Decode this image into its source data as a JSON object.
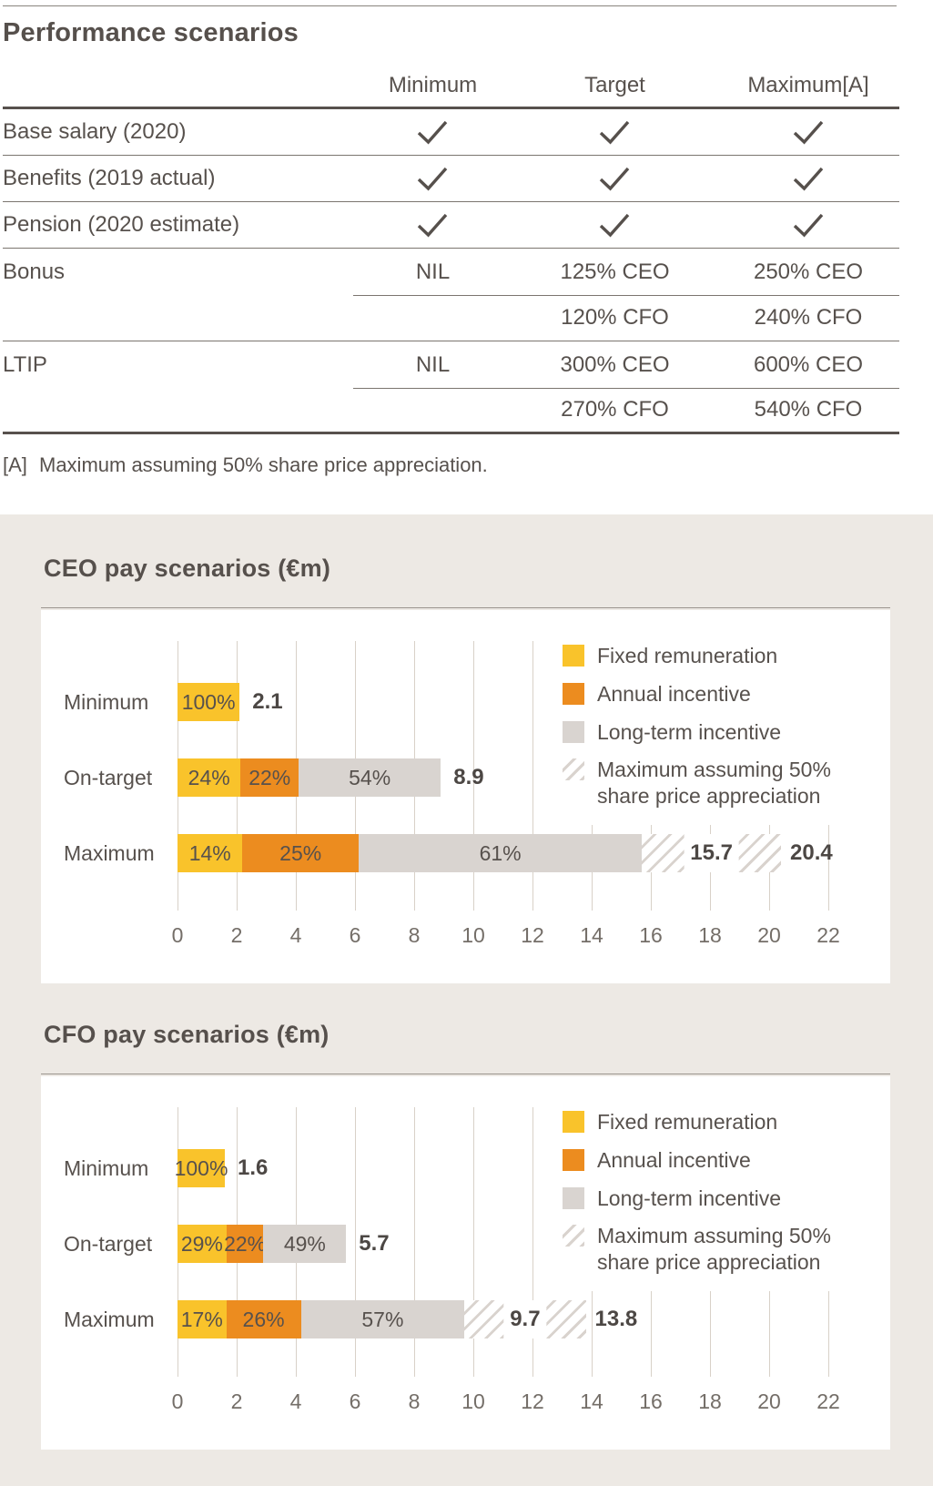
{
  "page_title": "Performance scenarios",
  "table": {
    "columns": [
      "Minimum",
      "Target",
      "Maximum[A]"
    ],
    "rows": [
      {
        "label": "Base salary (2020)",
        "cells": [
          "check",
          "check",
          "check"
        ]
      },
      {
        "label": "Benefits (2019 actual)",
        "cells": [
          "check",
          "check",
          "check"
        ]
      },
      {
        "label": "Pension (2020 estimate)",
        "cells": [
          "check",
          "check",
          "check"
        ]
      },
      {
        "label": "Bonus",
        "cells": [
          "NIL",
          "125% CEO",
          "250% CEO"
        ],
        "sub_cells": [
          "",
          "120% CFO",
          "240% CFO"
        ]
      },
      {
        "label": "LTIP",
        "cells": [
          "NIL",
          "300% CEO",
          "600% CEO"
        ],
        "sub_cells": [
          "",
          "270% CFO",
          "540% CFO"
        ]
      }
    ],
    "footnote_marker": "[A]",
    "footnote_text": "Maximum assuming 50% share price appreciation."
  },
  "chart_data": [
    {
      "type": "bar",
      "orientation": "horizontal",
      "stacked": true,
      "title": "CEO pay scenarios (€m)",
      "categories": [
        "Minimum",
        "On-target",
        "Maximum"
      ],
      "xaxis": {
        "min": 0,
        "max": 22,
        "step": 2
      },
      "grid": true,
      "legend_position": "top-right",
      "legend": [
        {
          "series": "fixed",
          "label": "Fixed remuneration"
        },
        {
          "series": "annual",
          "label": "Annual incentive"
        },
        {
          "series": "lti",
          "label": "Long-term incentive"
        },
        {
          "series": "hatch",
          "label": "Maximum assuming 50% share price appreciation"
        }
      ],
      "rows": [
        {
          "label": "Minimum",
          "total": 2.1,
          "total_label": "2.1",
          "segments": [
            {
              "series": "fixed",
              "pct": 100
            }
          ]
        },
        {
          "label": "On-target",
          "total": 8.9,
          "total_label": "8.9",
          "segments": [
            {
              "series": "fixed",
              "pct": 24
            },
            {
              "series": "annual",
              "pct": 22
            },
            {
              "series": "lti",
              "pct": 54
            }
          ]
        },
        {
          "label": "Maximum",
          "total": 15.7,
          "total_label": "15.7",
          "max_with_appreciation": 20.4,
          "max_label": "20.4",
          "segments": [
            {
              "series": "fixed",
              "pct": 14
            },
            {
              "series": "annual",
              "pct": 25
            },
            {
              "series": "lti",
              "pct": 61
            }
          ]
        }
      ]
    },
    {
      "type": "bar",
      "orientation": "horizontal",
      "stacked": true,
      "title": "CFO pay scenarios (€m)",
      "categories": [
        "Minimum",
        "On-target",
        "Maximum"
      ],
      "xaxis": {
        "min": 0,
        "max": 22,
        "step": 2
      },
      "grid": true,
      "legend_position": "top-right",
      "legend": [
        {
          "series": "fixed",
          "label": "Fixed remuneration"
        },
        {
          "series": "annual",
          "label": "Annual incentive"
        },
        {
          "series": "lti",
          "label": "Long-term incentive"
        },
        {
          "series": "hatch",
          "label": "Maximum assuming 50% share price appreciation"
        }
      ],
      "rows": [
        {
          "label": "Minimum",
          "total": 1.6,
          "total_label": "1.6",
          "segments": [
            {
              "series": "fixed",
              "pct": 100
            }
          ]
        },
        {
          "label": "On-target",
          "total": 5.7,
          "total_label": "5.7",
          "segments": [
            {
              "series": "fixed",
              "pct": 29
            },
            {
              "series": "annual",
              "pct": 22
            },
            {
              "series": "lti",
              "pct": 49
            }
          ]
        },
        {
          "label": "Maximum",
          "total": 9.7,
          "total_label": "9.7",
          "max_with_appreciation": 13.8,
          "max_label": "13.8",
          "segments": [
            {
              "series": "fixed",
              "pct": 17
            },
            {
              "series": "annual",
              "pct": 26
            },
            {
              "series": "lti",
              "pct": 57
            }
          ]
        }
      ]
    }
  ],
  "colors": {
    "fixed": "#F9C32B",
    "annual": "#EC8C1F",
    "lti": "#D9D4D0",
    "panel_bg": "#EDE9E4",
    "text": "#57514D",
    "grid": "#D8D1C8",
    "hatch_line": "#D9D3CE",
    "check": "#56504C"
  }
}
